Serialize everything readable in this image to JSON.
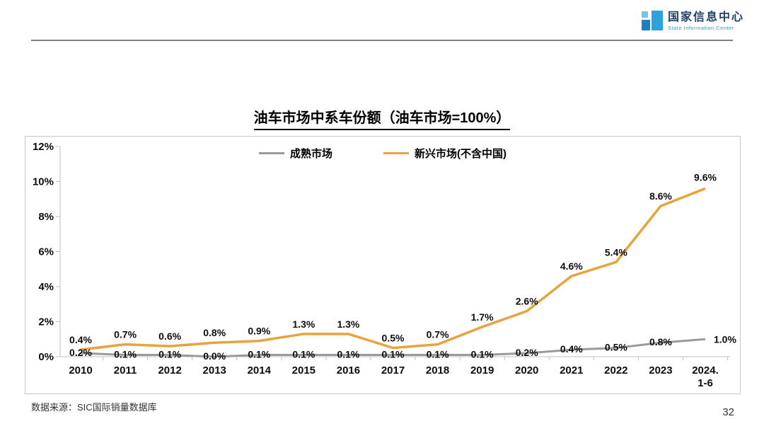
{
  "header": {
    "logo": {
      "org_name_cn": "国家信息中心",
      "org_name_en": "State Information Center",
      "brand_blue": "#2da2dc",
      "brand_dark_blue": "#1f4167"
    }
  },
  "chart_data": {
    "type": "line",
    "title": "油车市场中系车份额（油车市场=100%）",
    "categories": [
      "2010",
      "2011",
      "2012",
      "2013",
      "2014",
      "2015",
      "2016",
      "2017",
      "2018",
      "2019",
      "2020",
      "2021",
      "2022",
      "2023",
      "2024.\n1-6"
    ],
    "series": [
      {
        "name": "成熟市场",
        "color": "#9a9a9a",
        "values": [
          0.2,
          0.1,
          0.1,
          0.0,
          0.1,
          0.1,
          0.1,
          0.1,
          0.1,
          0.1,
          0.2,
          0.4,
          0.5,
          0.8,
          1.0
        ]
      },
      {
        "name": "新兴市场(不含中国)",
        "color": "#e8a33d",
        "values": [
          0.4,
          0.7,
          0.6,
          0.8,
          0.9,
          1.3,
          1.3,
          0.5,
          0.7,
          1.7,
          2.6,
          4.6,
          5.4,
          8.6,
          9.6
        ]
      }
    ],
    "ylim": [
      0,
      12
    ],
    "ytick_step": 2,
    "ytick_labels": [
      "0%",
      "2%",
      "4%",
      "6%",
      "8%",
      "10%",
      "12%"
    ],
    "legend_position": "top",
    "grid": false,
    "axis_color": "#bfbfbf",
    "label_suffix": "%"
  },
  "footer": {
    "source": "数据来源：SIC国际销量数据库",
    "page_number": "32"
  }
}
